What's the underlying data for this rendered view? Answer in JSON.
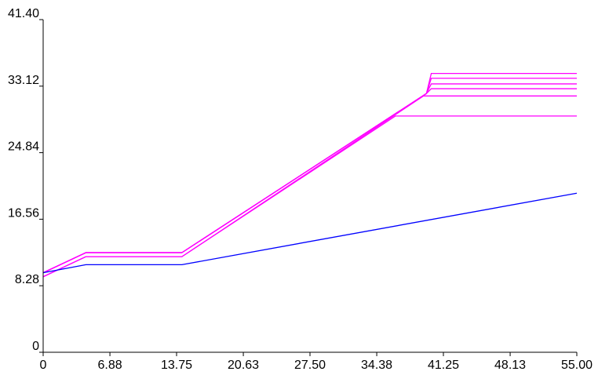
{
  "chart_data": {
    "type": "line",
    "title": "",
    "xlabel": "",
    "ylabel": "",
    "xlim": [
      0,
      55
    ],
    "ylim": [
      0,
      41.4
    ],
    "grid": false,
    "x_ticks": [
      "0",
      "6.88",
      "13.75",
      "20.63",
      "27.50",
      "34.38",
      "41.25",
      "48.13",
      "55.00"
    ],
    "y_ticks": [
      "0",
      "8.28",
      "16.56",
      "24.84",
      "33.12",
      "41.40"
    ],
    "x_tick_values": [
      0,
      6.88,
      13.75,
      20.63,
      27.5,
      34.38,
      41.25,
      48.13,
      55
    ],
    "y_tick_values": [
      0,
      8.28,
      16.56,
      24.84,
      33.12,
      41.4
    ],
    "colors": {
      "magenta": "#ff00ff",
      "blue": "#0000ff",
      "axis": "#000000"
    },
    "series": [
      {
        "color": "#ff00ff",
        "x": [
          0,
          4.4,
          14.3,
          39.5,
          40.0,
          55
        ],
        "y": [
          9.9,
          12.4,
          12.4,
          32.2,
          34.7,
          34.7
        ]
      },
      {
        "color": "#ff00ff",
        "x": [
          0,
          4.4,
          14.3,
          39.5,
          40.0,
          55
        ],
        "y": [
          9.9,
          12.4,
          12.4,
          32.2,
          34.1,
          34.1
        ]
      },
      {
        "color": "#ff00ff",
        "x": [
          0,
          4.4,
          14.3,
          39.5,
          40.0,
          55
        ],
        "y": [
          9.9,
          12.4,
          12.4,
          32.2,
          33.4,
          33.4
        ]
      },
      {
        "color": "#ff00ff",
        "x": [
          0,
          4.4,
          14.3,
          39.5,
          40.0,
          55
        ],
        "y": [
          9.9,
          12.4,
          12.4,
          32.2,
          32.8,
          32.8
        ]
      },
      {
        "color": "#ff00ff",
        "x": [
          0,
          4.4,
          14.3,
          39.2,
          55
        ],
        "y": [
          9.4,
          11.9,
          11.9,
          31.9,
          31.9
        ]
      },
      {
        "color": "#ff00ff",
        "x": [
          0,
          4.4,
          14.3,
          36.3,
          55
        ],
        "y": [
          9.4,
          11.9,
          11.9,
          29.4,
          29.4
        ]
      },
      {
        "color": "#0000ff",
        "x": [
          0,
          4.4,
          14.3,
          55
        ],
        "y": [
          9.9,
          10.9,
          10.9,
          19.8
        ]
      }
    ]
  }
}
